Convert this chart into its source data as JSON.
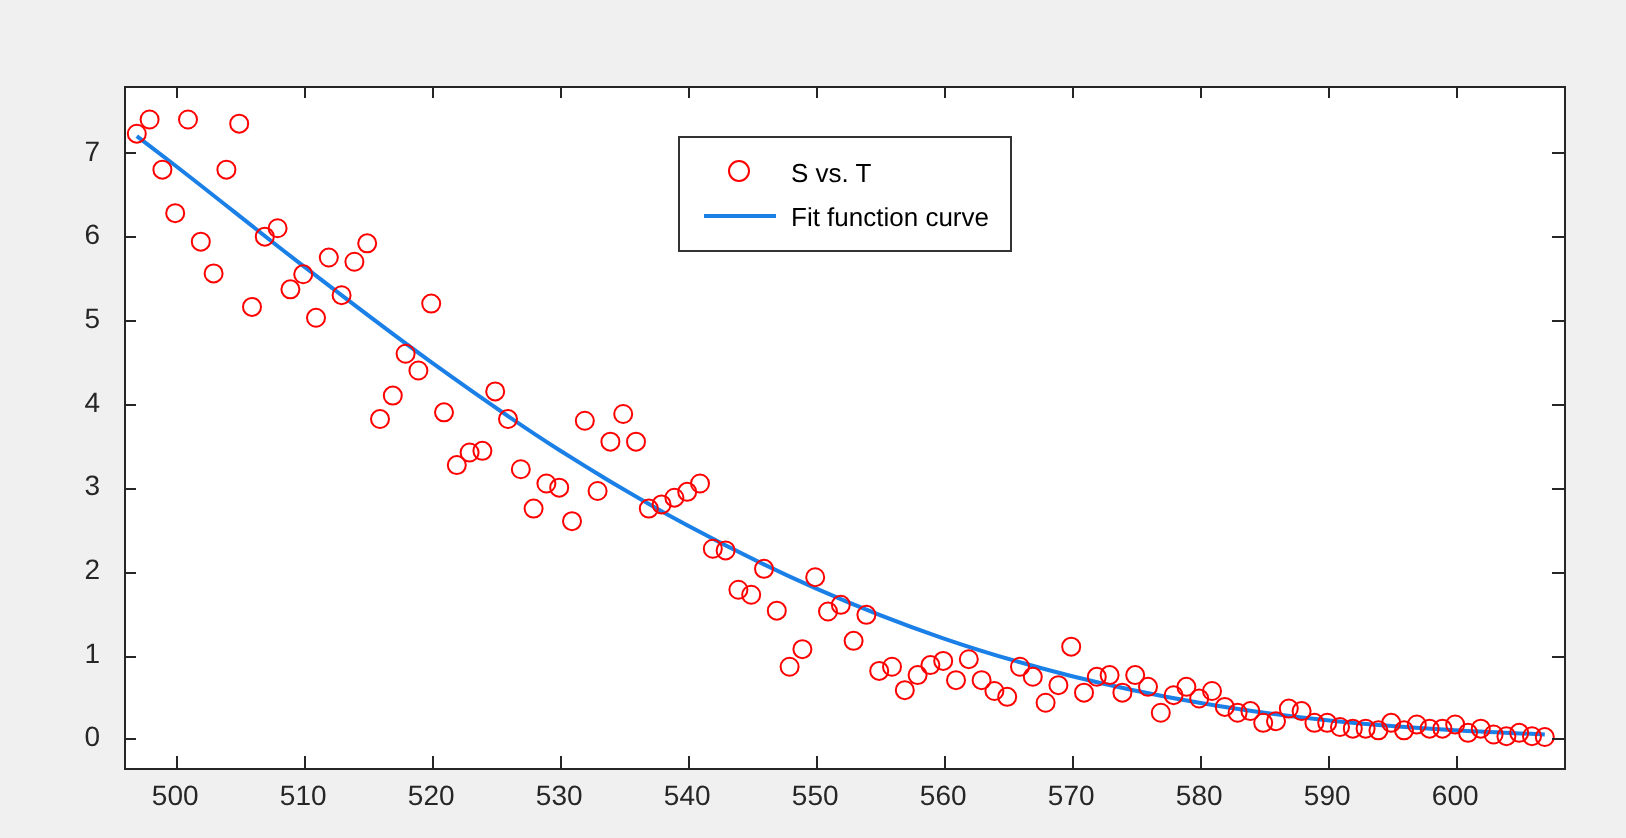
{
  "chart_data": {
    "type": "scatter",
    "xlim": [
      496,
      608.5
    ],
    "ylim": [
      -0.35,
      7.8
    ],
    "xticks": [
      500,
      510,
      520,
      530,
      540,
      550,
      560,
      570,
      580,
      590,
      600
    ],
    "yticks": [
      0,
      1,
      2,
      3,
      4,
      5,
      6,
      7
    ],
    "grid": false,
    "legend": "top",
    "series": [
      {
        "name": "S vs. T",
        "type": "scatter",
        "marker": "circle",
        "color": "#ff0000",
        "x": [
          497,
          498,
          499,
          500,
          501,
          502,
          503,
          504,
          505,
          506,
          507,
          508,
          509,
          510,
          511,
          512,
          513,
          514,
          515,
          516,
          517,
          518,
          519,
          520,
          521,
          522,
          523,
          524,
          525,
          526,
          527,
          528,
          529,
          530,
          531,
          532,
          533,
          534,
          535,
          536,
          537,
          538,
          539,
          540,
          541,
          542,
          543,
          544,
          545,
          546,
          547,
          548,
          549,
          550,
          551,
          552,
          553,
          554,
          555,
          556,
          557,
          558,
          559,
          560,
          561,
          562,
          563,
          564,
          565,
          566,
          567,
          568,
          569,
          570,
          571,
          572,
          573,
          574,
          575,
          576,
          577,
          578,
          579,
          580,
          581,
          582,
          583,
          584,
          585,
          586,
          587,
          588,
          589,
          590,
          591,
          592,
          593,
          594,
          595,
          596,
          597,
          598,
          599,
          600,
          601,
          602,
          603,
          604,
          605,
          606,
          607
        ],
        "values": [
          7.23,
          7.4,
          6.8,
          6.28,
          7.4,
          5.94,
          5.56,
          6.8,
          7.35,
          5.16,
          6.0,
          6.1,
          5.37,
          5.55,
          5.03,
          5.75,
          5.3,
          5.7,
          5.92,
          3.82,
          4.1,
          4.6,
          4.4,
          5.2,
          3.9,
          3.27,
          3.42,
          3.44,
          4.15,
          3.82,
          3.22,
          2.75,
          3.05,
          3.0,
          2.6,
          3.8,
          2.96,
          3.55,
          3.88,
          3.55,
          2.75,
          2.8,
          2.88,
          2.95,
          3.05,
          2.27,
          2.25,
          1.78,
          1.72,
          2.03,
          1.53,
          0.86,
          1.07,
          1.93,
          1.52,
          1.6,
          1.17,
          1.48,
          0.81,
          0.86,
          0.58,
          0.76,
          0.88,
          0.93,
          0.7,
          0.95,
          0.7,
          0.57,
          0.5,
          0.86,
          0.74,
          0.43,
          0.64,
          1.1,
          0.55,
          0.74,
          0.76,
          0.55,
          0.76,
          0.62,
          0.31,
          0.52,
          0.62,
          0.48,
          0.57,
          0.38,
          0.31,
          0.33,
          0.19,
          0.21,
          0.36,
          0.33,
          0.19,
          0.19,
          0.14,
          0.12,
          0.12,
          0.1,
          0.19,
          0.1,
          0.17,
          0.12,
          0.12,
          0.17,
          0.07,
          0.12,
          0.05,
          0.03,
          0.07,
          0.03,
          0.02
        ]
      },
      {
        "name": "Fit function curve",
        "type": "line",
        "marker": "none",
        "line_style": "solid",
        "color": "#1a7fe6",
        "x": [
          497,
          500,
          510,
          520,
          530,
          540,
          550,
          560,
          570,
          580,
          590,
          600,
          607
        ],
        "values": [
          7.2,
          6.85,
          5.65,
          4.5,
          3.45,
          2.55,
          1.8,
          1.2,
          0.75,
          0.43,
          0.22,
          0.1,
          0.05
        ]
      }
    ]
  }
}
